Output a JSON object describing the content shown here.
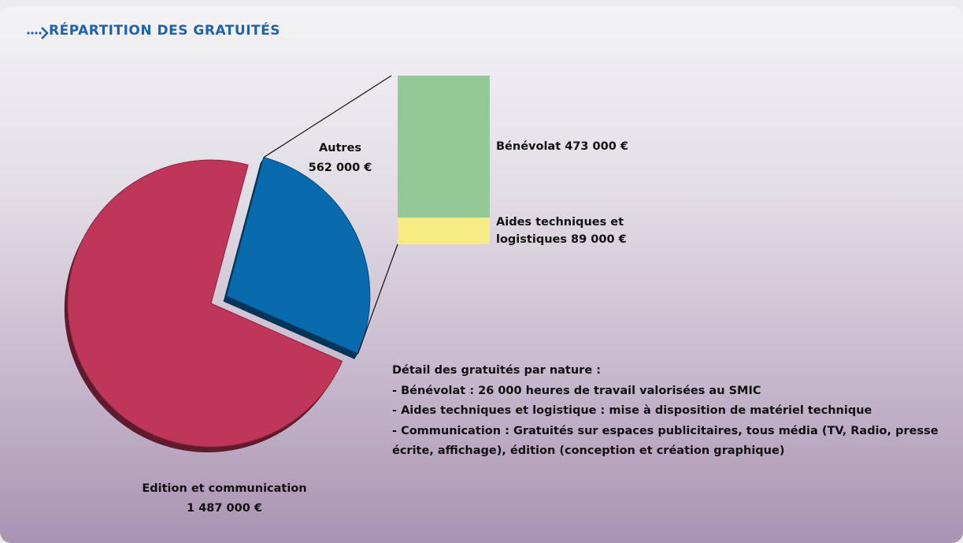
{
  "chart_data": [
    {
      "type": "pie",
      "title": "RÉPARTITION DES GRATUITÉS",
      "categories": [
        "Autres",
        "Edition et communication"
      ],
      "values": [
        562000,
        1487000
      ],
      "value_labels": [
        "562 000 €",
        "1 487 000 €"
      ],
      "colors": [
        "#0a6aae",
        "#c0365a"
      ]
    },
    {
      "type": "bar",
      "stacked": true,
      "categories": [
        "Bénévolat",
        "Aides techniques et logistiques"
      ],
      "values": [
        473000,
        89000
      ],
      "value_labels": [
        "473 000 €",
        "89 000 €"
      ],
      "colors": [
        "#93c997",
        "#f7ec84"
      ]
    }
  ],
  "notes": {
    "heading": "Détail des gratuités par nature :",
    "items": [
      "- Bénévolat : 26 000 heures de travail valorisées au SMIC",
      "- Aides techniques et logistique : mise à disposition de matériel technique",
      "- Communication : Gratuités sur espaces publicitaires, tous média (TV, Radio, presse écrite, affichage), édition (conception et création graphique)"
    ]
  }
}
